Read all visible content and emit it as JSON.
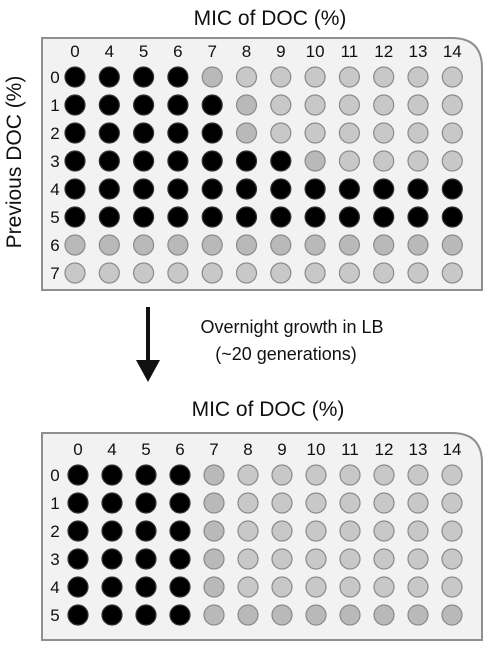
{
  "colors": {
    "grown_well": "#000000",
    "no_growth_well": "#c8c8c8",
    "no_growth_well_dark": "#b9b9b9",
    "well_stroke": "#8a8a8a",
    "plate_fill": "#f2f2f2",
    "plate_stroke": "#8f8f8f",
    "arrow": "#111111"
  },
  "plate_top": {
    "title": "MIC of DOC (%)",
    "y_axis_label": "Previous DOC (%)",
    "columns": [
      "0",
      "4",
      "5",
      "6",
      "7",
      "8",
      "9",
      "10",
      "11",
      "12",
      "13",
      "14"
    ],
    "rows": [
      "0",
      "1",
      "2",
      "3",
      "4",
      "5",
      "6",
      "7"
    ],
    "growth": [
      [
        1,
        1,
        1,
        1,
        0,
        0,
        0,
        0,
        0,
        0,
        0,
        0
      ],
      [
        1,
        1,
        1,
        1,
        1,
        0,
        0,
        0,
        0,
        0,
        0,
        0
      ],
      [
        1,
        1,
        1,
        1,
        1,
        0,
        0,
        0,
        0,
        0,
        0,
        0
      ],
      [
        1,
        1,
        1,
        1,
        1,
        1,
        1,
        0,
        0,
        0,
        0,
        0
      ],
      [
        1,
        1,
        1,
        1,
        1,
        1,
        1,
        1,
        1,
        1,
        1,
        1
      ],
      [
        1,
        1,
        1,
        1,
        1,
        1,
        1,
        1,
        1,
        1,
        1,
        1
      ],
      [
        0,
        0,
        0,
        0,
        0,
        0,
        0,
        0,
        0,
        0,
        0,
        0
      ],
      [
        0,
        0,
        0,
        0,
        0,
        0,
        0,
        0,
        0,
        0,
        0,
        0
      ]
    ],
    "shade_dark": [
      [
        0,
        0,
        0,
        0,
        1,
        0,
        0,
        0,
        0,
        0,
        0,
        0
      ],
      [
        0,
        0,
        0,
        0,
        0,
        1,
        0,
        0,
        0,
        0,
        0,
        0
      ],
      [
        0,
        0,
        0,
        0,
        0,
        1,
        0,
        0,
        0,
        0,
        0,
        0
      ],
      [
        0,
        0,
        0,
        0,
        0,
        0,
        0,
        1,
        0,
        0,
        0,
        0
      ],
      [
        0,
        0,
        0,
        0,
        0,
        0,
        0,
        0,
        0,
        0,
        0,
        0
      ],
      [
        0,
        0,
        0,
        0,
        0,
        0,
        0,
        0,
        0,
        0,
        0,
        0
      ],
      [
        1,
        1,
        1,
        1,
        1,
        1,
        1,
        1,
        1,
        1,
        1,
        1
      ],
      [
        0,
        0,
        0,
        0,
        0,
        0,
        0,
        0,
        0,
        0,
        0,
        0
      ]
    ]
  },
  "transition": {
    "line1": "Overnight growth in LB",
    "line2": "(~20 generations)"
  },
  "plate_bottom": {
    "title": "MIC of DOC (%)",
    "columns": [
      "0",
      "4",
      "5",
      "6",
      "7",
      "8",
      "9",
      "10",
      "11",
      "12",
      "13",
      "14"
    ],
    "rows": [
      "0",
      "1",
      "2",
      "3",
      "4",
      "5"
    ],
    "growth": [
      [
        1,
        1,
        1,
        1,
        0,
        0,
        0,
        0,
        0,
        0,
        0,
        0
      ],
      [
        1,
        1,
        1,
        1,
        0,
        0,
        0,
        0,
        0,
        0,
        0,
        0
      ],
      [
        1,
        1,
        1,
        1,
        0,
        0,
        0,
        0,
        0,
        0,
        0,
        0
      ],
      [
        1,
        1,
        1,
        1,
        0,
        0,
        0,
        0,
        0,
        0,
        0,
        0
      ],
      [
        1,
        1,
        1,
        1,
        0,
        0,
        0,
        0,
        0,
        0,
        0,
        0
      ],
      [
        1,
        1,
        1,
        1,
        0,
        0,
        0,
        0,
        0,
        0,
        0,
        0
      ]
    ],
    "shade_dark": [
      [
        0,
        0,
        0,
        0,
        1,
        0,
        0,
        0,
        0,
        0,
        0,
        0
      ],
      [
        0,
        0,
        0,
        0,
        1,
        0,
        0,
        0,
        0,
        0,
        0,
        0
      ],
      [
        0,
        0,
        0,
        0,
        1,
        0,
        0,
        0,
        0,
        0,
        0,
        0
      ],
      [
        0,
        0,
        0,
        0,
        1,
        0,
        0,
        0,
        0,
        0,
        0,
        0
      ],
      [
        0,
        0,
        0,
        0,
        1,
        0,
        0,
        0,
        0,
        0,
        0,
        0
      ],
      [
        0,
        0,
        0,
        0,
        1,
        1,
        1,
        1,
        1,
        1,
        1,
        1
      ]
    ]
  }
}
